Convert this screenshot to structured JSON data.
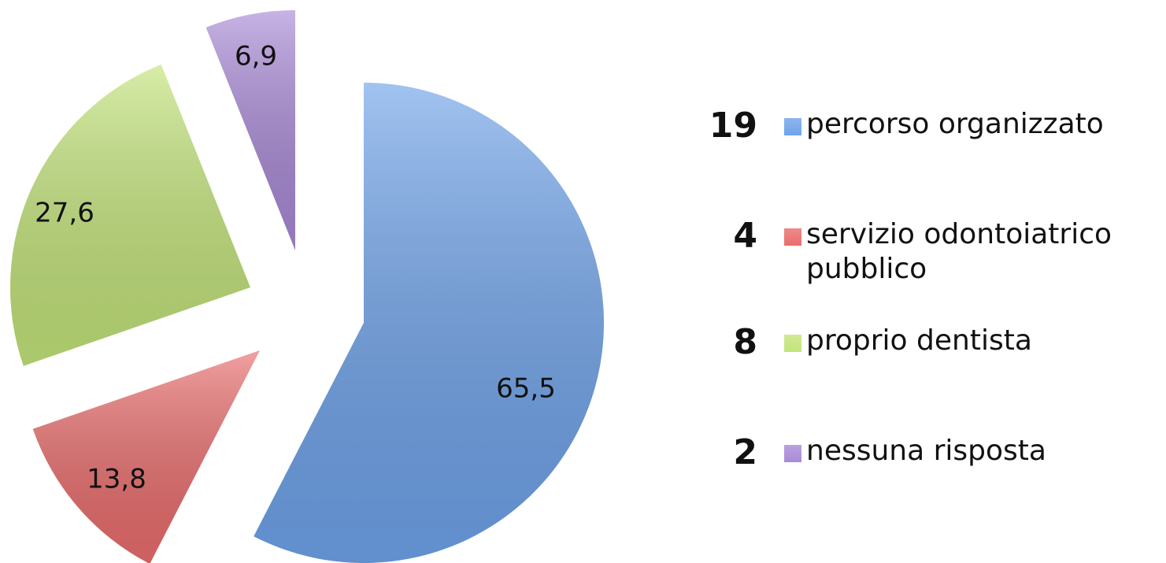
{
  "chart_data": {
    "type": "pie",
    "categories": [
      "percorso organizzato",
      "servizio odontoiatrico pubblico",
      "proprio dentista",
      "nessuna risposta"
    ],
    "counts": [
      19,
      4,
      8,
      2
    ],
    "values": [
      65.5,
      13.8,
      27.6,
      6.9
    ],
    "value_labels": [
      "65,5",
      "13,8",
      "27,6",
      "6,9"
    ],
    "colors": [
      "#6fa3ea",
      "#ea6d6d",
      "#c3e47a",
      "#a98ad6"
    ],
    "legend": "right"
  }
}
